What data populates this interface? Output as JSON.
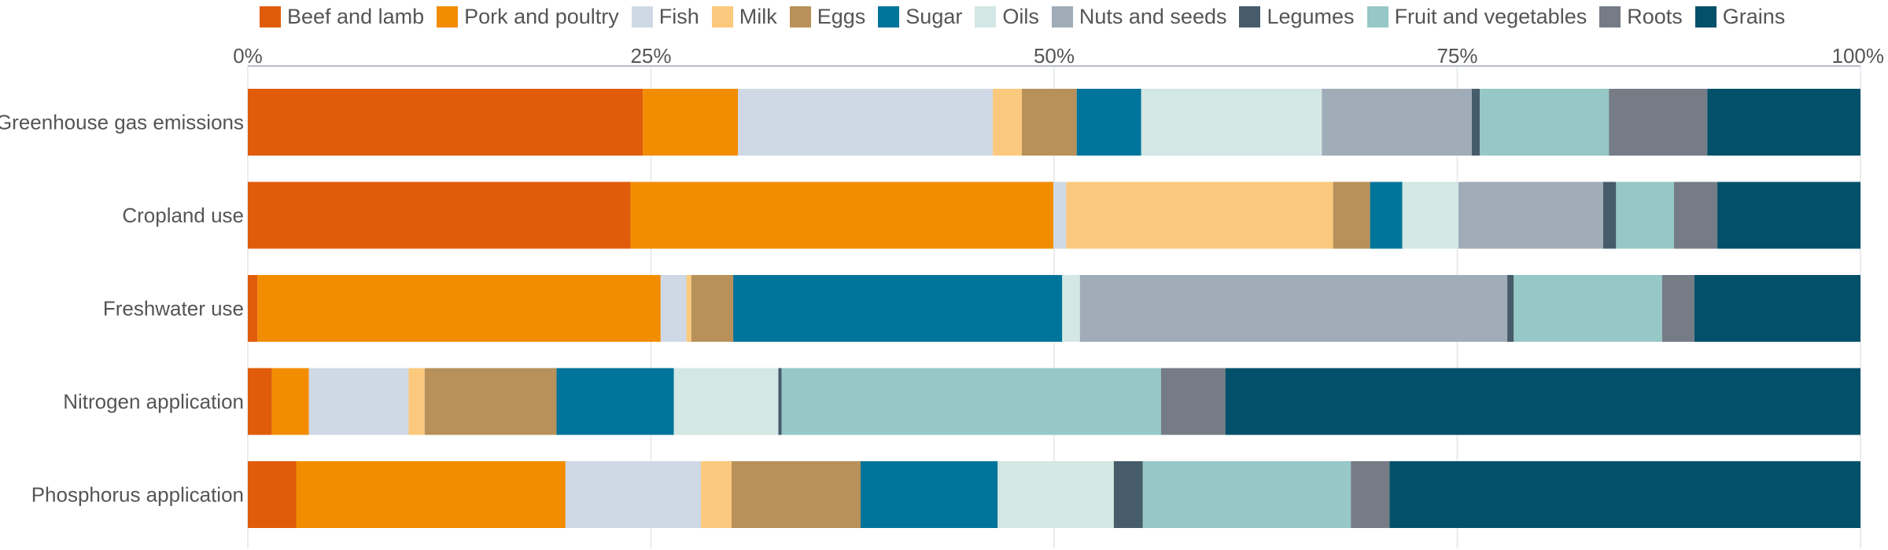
{
  "chart_data": {
    "type": "bar",
    "orientation": "horizontal",
    "stacked": true,
    "normalized": true,
    "xlim": [
      0,
      100
    ],
    "x_tick_values": [
      0,
      25,
      50,
      75,
      100
    ],
    "x_tick_labels": [
      "0%",
      "25%",
      "50%",
      "75%",
      "100%"
    ],
    "x_axis_position": "top",
    "legend_position": "top",
    "grid": true,
    "categories": [
      "Greenhouse gas emissions",
      "Cropland use",
      "Freshwater use",
      "Nitrogen application",
      "Phosphorus application"
    ],
    "series": [
      {
        "name": "Beef and lamb",
        "color": "#e05c0b",
        "values": [
          24.5,
          23.8,
          0.6,
          1.5,
          3.0
        ]
      },
      {
        "name": "Pork and poultry",
        "color": "#f28c00",
        "values": [
          5.9,
          26.3,
          25.0,
          2.3,
          16.7
        ]
      },
      {
        "name": "Fish",
        "color": "#cfd9e5",
        "values": [
          15.8,
          0.8,
          1.6,
          6.2,
          8.4
        ]
      },
      {
        "name": "Milk",
        "color": "#fbc97d",
        "values": [
          1.8,
          16.6,
          0.3,
          1.0,
          1.9
        ]
      },
      {
        "name": "Eggs",
        "color": "#b8915a",
        "values": [
          3.4,
          2.3,
          2.6,
          8.2,
          8.0
        ]
      },
      {
        "name": "Sugar",
        "color": "#00749a",
        "values": [
          4.0,
          2.0,
          20.4,
          7.3,
          8.5
        ]
      },
      {
        "name": "Oils",
        "color": "#d3e7e4",
        "values": [
          11.2,
          3.5,
          1.1,
          6.5,
          7.2
        ]
      },
      {
        "name": "Nuts and seeds",
        "color": "#a0acb8",
        "values": [
          9.3,
          9.0,
          26.5,
          0.0,
          0.0
        ]
      },
      {
        "name": "Legumes",
        "color": "#465c6b",
        "values": [
          0.5,
          0.8,
          0.4,
          0.2,
          1.8
        ]
      },
      {
        "name": "Fruit and vegetables",
        "color": "#95c8c6",
        "values": [
          8.0,
          3.6,
          9.2,
          23.6,
          12.9
        ]
      },
      {
        "name": "Roots",
        "color": "#757c86",
        "values": [
          6.1,
          2.7,
          2.0,
          4.0,
          2.4
        ]
      },
      {
        "name": "Grains",
        "color": "#02506a",
        "values": [
          9.5,
          8.9,
          10.3,
          39.5,
          29.2
        ]
      }
    ]
  }
}
